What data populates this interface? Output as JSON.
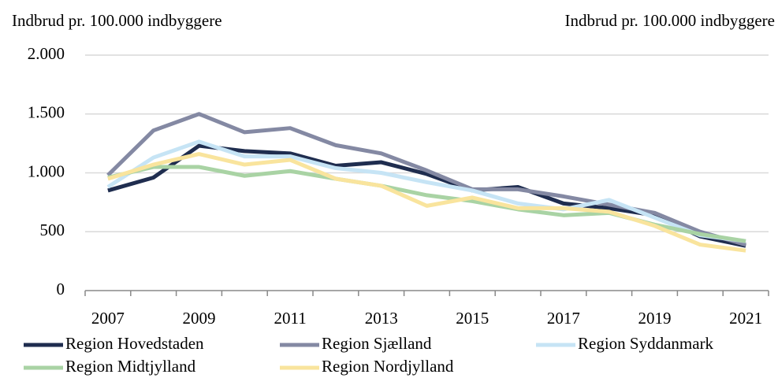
{
  "chart_data": {
    "type": "line",
    "ylabel": "Indbrud pr. 100.000 indbyggere",
    "ylabel_right": "Indbrud pr. 100.000 indbyggere",
    "categories": [
      "2007",
      null,
      "2009",
      null,
      "2011",
      null,
      "2013",
      null,
      "2015",
      null,
      "2017",
      null,
      "2019",
      null,
      "2021"
    ],
    "ylim": [
      0,
      2000
    ],
    "yticks": [
      0,
      500,
      {
        "value": 1000,
        "label": "1.000"
      },
      {
        "value": 1500,
        "label": "1.500"
      },
      {
        "value": 2000,
        "label": "2.000"
      }
    ],
    "grid": true,
    "legend": "bottom",
    "series": [
      {
        "name": "Region Hovedstaden",
        "color": "#1f2d4f",
        "values": [
          850,
          960,
          1230,
          1185,
          1165,
          1060,
          1090,
          990,
          850,
          880,
          740,
          700,
          640,
          460,
          380
        ]
      },
      {
        "name": "Region Sjælland",
        "color": "#8489a3",
        "values": [
          980,
          1360,
          1500,
          1345,
          1380,
          1235,
          1165,
          1020,
          860,
          860,
          800,
          730,
          660,
          500,
          390
        ]
      },
      {
        "name": "Region Syddanmark",
        "color": "#c6e4f5",
        "values": [
          880,
          1130,
          1265,
          1140,
          1140,
          1040,
          1000,
          920,
          850,
          740,
          690,
          770,
          620,
          470,
          420
        ]
      },
      {
        "name": "Region Midtjylland",
        "color": "#a9d3a4",
        "values": [
          960,
          1050,
          1050,
          975,
          1015,
          950,
          890,
          810,
          760,
          690,
          640,
          660,
          560,
          480,
          420
        ]
      },
      {
        "name": "Region Nordjylland",
        "color": "#f9e49d",
        "values": [
          950,
          1070,
          1160,
          1070,
          1110,
          950,
          890,
          720,
          790,
          700,
          700,
          670,
          550,
          390,
          340
        ]
      }
    ]
  }
}
